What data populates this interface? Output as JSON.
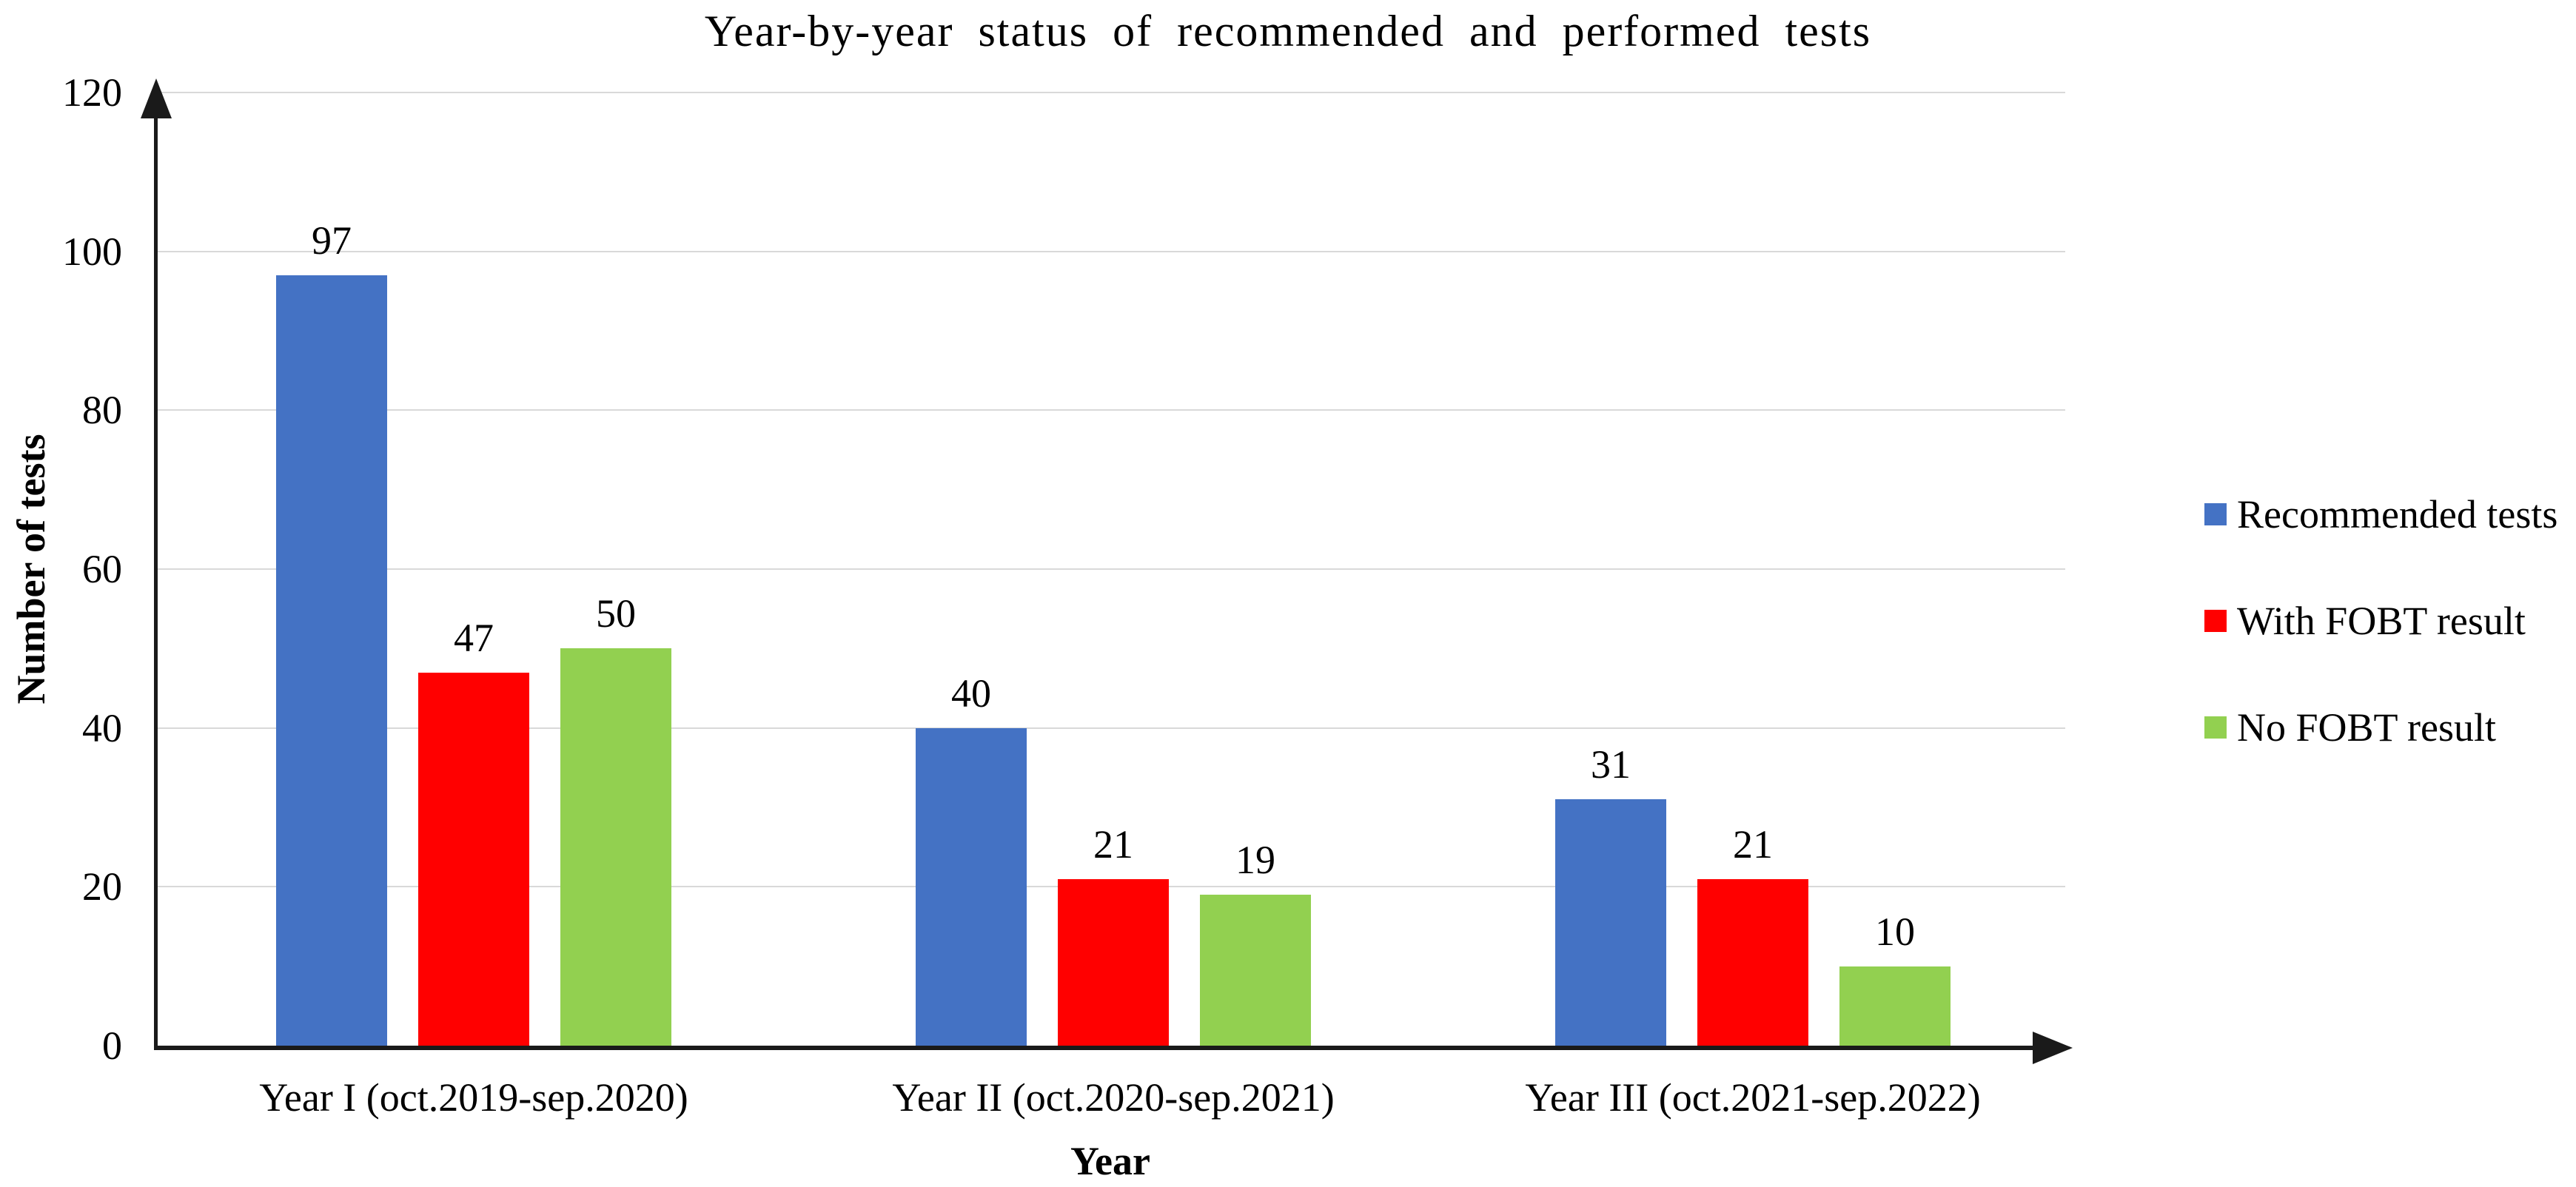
{
  "chart_data": {
    "type": "bar",
    "title": "Year-by-year status of recommended and performed tests",
    "xlabel": "Year",
    "ylabel": "Number of tests",
    "ylim": [
      0,
      120
    ],
    "yticks": [
      0,
      20,
      40,
      60,
      80,
      100,
      120
    ],
    "grid": true,
    "legend_position": "right",
    "value_labels": true,
    "categories": [
      "Year I (oct.2019-sep.2020)",
      "Year II (oct.2020-sep.2021)",
      "Year III (oct.2021-sep.2022)"
    ],
    "series": [
      {
        "name": "Recommended tests",
        "color": "#4472C4",
        "values": [
          97,
          40,
          31
        ]
      },
      {
        "name": "With FOBT result",
        "color": "#FF0000",
        "values": [
          47,
          21,
          21
        ]
      },
      {
        "name": "No FOBT result",
        "color": "#92D050",
        "values": [
          50,
          19,
          10
        ]
      }
    ]
  },
  "colors": {
    "axis": "#1a1a1a",
    "gridline": "#D9D9D9",
    "background": "#FFFFFF",
    "text": "#000000"
  }
}
